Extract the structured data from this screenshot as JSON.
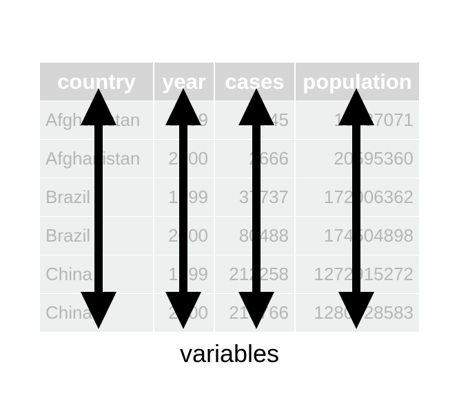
{
  "table": {
    "headers": [
      "country",
      "year",
      "cases",
      "population"
    ],
    "rows": [
      [
        "Afghanistan",
        "1999",
        "745",
        "19987071"
      ],
      [
        "Afghanistan",
        "2000",
        "2666",
        "20595360"
      ],
      [
        "Brazil",
        "1999",
        "37737",
        "172006362"
      ],
      [
        "Brazil",
        "2000",
        "80488",
        "174504898"
      ],
      [
        "China",
        "1999",
        "212258",
        "1272915272"
      ],
      [
        "China",
        "2000",
        "213766",
        "1280428583"
      ]
    ]
  },
  "caption": "variables",
  "colors": {
    "header_bg": "#d6d6d6",
    "cell_bg": "#eeefef",
    "cell_text": "#b6b6b6",
    "arrow": "#000000"
  },
  "arrow_icon": "double-headed-vertical-arrow"
}
